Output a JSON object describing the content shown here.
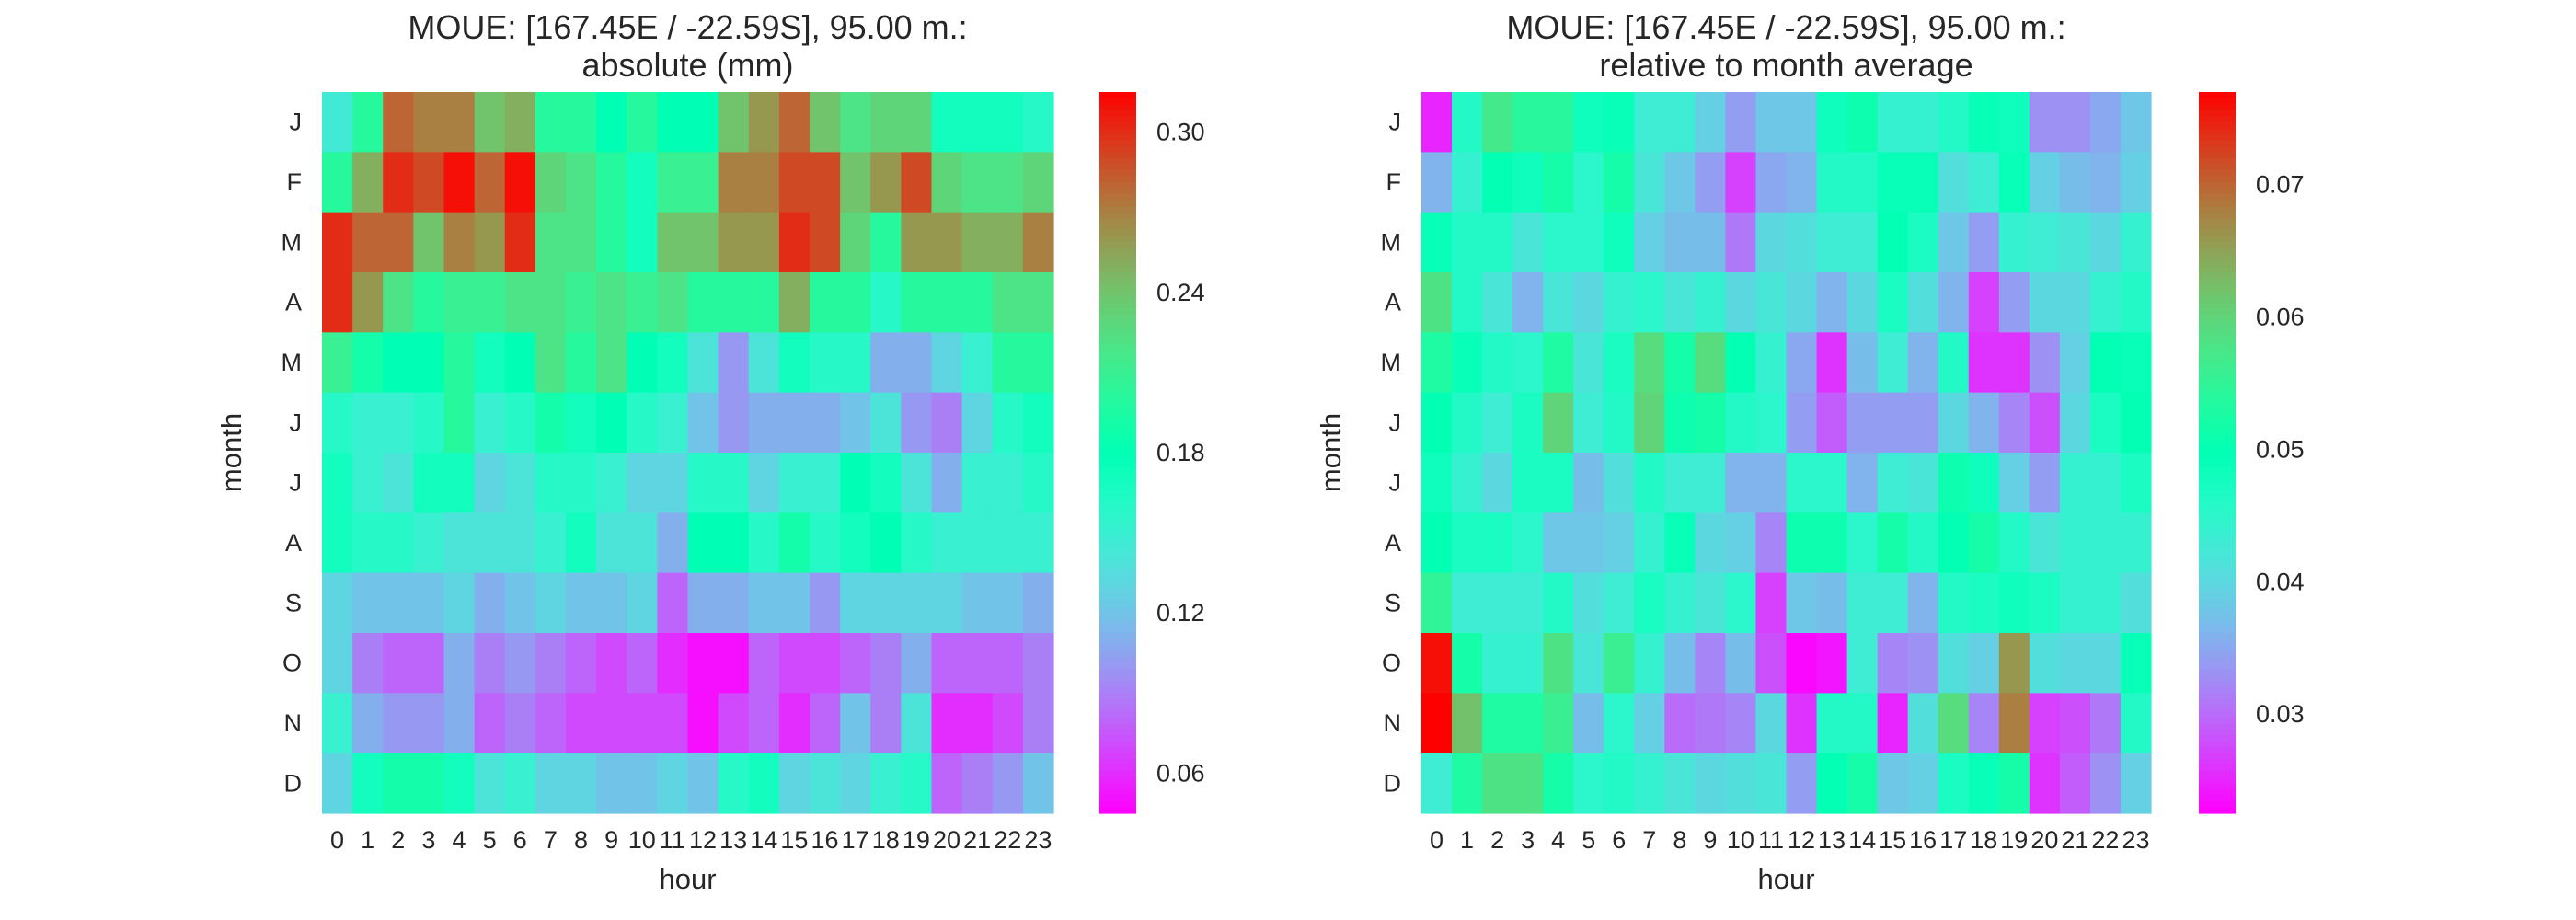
{
  "figure": {
    "colors": {
      "background": "#ffffff",
      "text": "#262626",
      "colormap": "rainbow"
    }
  },
  "chart_data": [
    {
      "type": "heatmap",
      "title": "MOUE: [167.45E / -22.59S], 95.00 m.:\nabsolute (mm)",
      "xlabel": "hour",
      "ylabel": "month",
      "x_categories": [
        "0",
        "1",
        "2",
        "3",
        "4",
        "5",
        "6",
        "7",
        "8",
        "9",
        "10",
        "11",
        "12",
        "13",
        "14",
        "15",
        "16",
        "17",
        "18",
        "19",
        "20",
        "21",
        "22",
        "23"
      ],
      "y_categories": [
        "J",
        "F",
        "M",
        "A",
        "M",
        "J",
        "J",
        "A",
        "S",
        "O",
        "N",
        "D"
      ],
      "colorbar": {
        "vmin": 0.045,
        "vmax": 0.315,
        "ticks": [
          0.06,
          0.12,
          0.18,
          0.24,
          0.3
        ]
      },
      "values": [
        [
          0.145,
          0.2,
          0.28,
          0.27,
          0.27,
          0.24,
          0.25,
          0.2,
          0.2,
          0.18,
          0.2,
          0.18,
          0.18,
          0.24,
          0.26,
          0.28,
          0.24,
          0.22,
          0.23,
          0.23,
          0.17,
          0.17,
          0.17,
          0.16
        ],
        [
          0.2,
          0.25,
          0.3,
          0.29,
          0.31,
          0.28,
          0.31,
          0.23,
          0.22,
          0.2,
          0.17,
          0.21,
          0.21,
          0.27,
          0.27,
          0.29,
          0.29,
          0.24,
          0.26,
          0.29,
          0.23,
          0.22,
          0.22,
          0.23
        ],
        [
          0.3,
          0.28,
          0.28,
          0.24,
          0.27,
          0.26,
          0.3,
          0.22,
          0.22,
          0.2,
          0.17,
          0.24,
          0.24,
          0.26,
          0.26,
          0.3,
          0.29,
          0.23,
          0.2,
          0.26,
          0.26,
          0.25,
          0.25,
          0.27
        ],
        [
          0.3,
          0.26,
          0.22,
          0.2,
          0.21,
          0.21,
          0.22,
          0.22,
          0.21,
          0.22,
          0.21,
          0.22,
          0.2,
          0.2,
          0.2,
          0.25,
          0.2,
          0.2,
          0.16,
          0.2,
          0.2,
          0.2,
          0.22,
          0.22
        ],
        [
          0.21,
          0.19,
          0.18,
          0.18,
          0.2,
          0.17,
          0.18,
          0.22,
          0.2,
          0.22,
          0.18,
          0.17,
          0.14,
          0.1,
          0.14,
          0.17,
          0.16,
          0.16,
          0.11,
          0.11,
          0.13,
          0.15,
          0.2,
          0.2
        ],
        [
          0.16,
          0.15,
          0.15,
          0.16,
          0.2,
          0.15,
          0.16,
          0.19,
          0.17,
          0.18,
          0.16,
          0.15,
          0.12,
          0.1,
          0.11,
          0.11,
          0.11,
          0.12,
          0.14,
          0.1,
          0.09,
          0.13,
          0.16,
          0.17
        ],
        [
          0.17,
          0.15,
          0.14,
          0.17,
          0.17,
          0.13,
          0.14,
          0.16,
          0.16,
          0.15,
          0.13,
          0.13,
          0.16,
          0.16,
          0.13,
          0.15,
          0.15,
          0.18,
          0.17,
          0.14,
          0.11,
          0.15,
          0.15,
          0.16
        ],
        [
          0.17,
          0.16,
          0.16,
          0.15,
          0.14,
          0.14,
          0.14,
          0.15,
          0.17,
          0.14,
          0.14,
          0.11,
          0.18,
          0.18,
          0.16,
          0.19,
          0.16,
          0.17,
          0.18,
          0.16,
          0.15,
          0.15,
          0.15,
          0.15
        ],
        [
          0.13,
          0.12,
          0.12,
          0.12,
          0.13,
          0.11,
          0.12,
          0.13,
          0.12,
          0.12,
          0.13,
          0.08,
          0.11,
          0.11,
          0.12,
          0.12,
          0.1,
          0.13,
          0.13,
          0.13,
          0.13,
          0.12,
          0.12,
          0.11
        ],
        [
          0.13,
          0.09,
          0.08,
          0.08,
          0.11,
          0.09,
          0.1,
          0.09,
          0.08,
          0.07,
          0.08,
          0.06,
          0.05,
          0.05,
          0.08,
          0.07,
          0.07,
          0.08,
          0.09,
          0.11,
          0.08,
          0.08,
          0.08,
          0.09
        ],
        [
          0.15,
          0.11,
          0.1,
          0.1,
          0.11,
          0.08,
          0.09,
          0.08,
          0.07,
          0.07,
          0.07,
          0.07,
          0.05,
          0.07,
          0.08,
          0.06,
          0.08,
          0.12,
          0.09,
          0.14,
          0.06,
          0.06,
          0.07,
          0.09
        ],
        [
          0.13,
          0.17,
          0.19,
          0.19,
          0.17,
          0.14,
          0.15,
          0.13,
          0.13,
          0.12,
          0.12,
          0.13,
          0.12,
          0.16,
          0.17,
          0.13,
          0.14,
          0.13,
          0.15,
          0.16,
          0.08,
          0.09,
          0.1,
          0.12
        ]
      ]
    },
    {
      "type": "heatmap",
      "title": "MOUE: [167.45E / -22.59S], 95.00 m.:\nrelative to month average",
      "xlabel": "hour",
      "ylabel": "month",
      "x_categories": [
        "0",
        "1",
        "2",
        "3",
        "4",
        "5",
        "6",
        "7",
        "8",
        "9",
        "10",
        "11",
        "12",
        "13",
        "14",
        "15",
        "16",
        "17",
        "18",
        "19",
        "20",
        "21",
        "22",
        "23"
      ],
      "y_categories": [
        "J",
        "F",
        "M",
        "A",
        "M",
        "J",
        "J",
        "A",
        "S",
        "O",
        "N",
        "D"
      ],
      "colorbar": {
        "vmin": 0.0225,
        "vmax": 0.077,
        "ticks": [
          0.03,
          0.04,
          0.05,
          0.06,
          0.07
        ]
      },
      "values": [
        [
          0.025,
          0.046,
          0.057,
          0.054,
          0.054,
          0.048,
          0.049,
          0.043,
          0.043,
          0.039,
          0.034,
          0.038,
          0.038,
          0.048,
          0.051,
          0.044,
          0.044,
          0.046,
          0.049,
          0.048,
          0.033,
          0.033,
          0.035,
          0.038
        ],
        [
          0.036,
          0.044,
          0.05,
          0.048,
          0.052,
          0.045,
          0.052,
          0.042,
          0.038,
          0.034,
          0.027,
          0.035,
          0.036,
          0.046,
          0.046,
          0.049,
          0.049,
          0.041,
          0.043,
          0.049,
          0.039,
          0.037,
          0.036,
          0.039
        ],
        [
          0.049,
          0.046,
          0.046,
          0.042,
          0.045,
          0.045,
          0.048,
          0.039,
          0.037,
          0.037,
          0.031,
          0.04,
          0.041,
          0.043,
          0.043,
          0.05,
          0.047,
          0.038,
          0.034,
          0.044,
          0.043,
          0.042,
          0.04,
          0.044
        ],
        [
          0.058,
          0.046,
          0.042,
          0.036,
          0.042,
          0.04,
          0.044,
          0.045,
          0.042,
          0.044,
          0.04,
          0.042,
          0.04,
          0.036,
          0.04,
          0.047,
          0.041,
          0.036,
          0.027,
          0.034,
          0.04,
          0.04,
          0.044,
          0.046
        ],
        [
          0.053,
          0.049,
          0.046,
          0.045,
          0.053,
          0.042,
          0.047,
          0.059,
          0.052,
          0.059,
          0.05,
          0.044,
          0.035,
          0.026,
          0.037,
          0.043,
          0.036,
          0.046,
          0.026,
          0.026,
          0.033,
          0.039,
          0.05,
          0.049
        ],
        [
          0.05,
          0.046,
          0.043,
          0.047,
          0.06,
          0.043,
          0.046,
          0.06,
          0.051,
          0.052,
          0.046,
          0.045,
          0.034,
          0.029,
          0.034,
          0.034,
          0.034,
          0.04,
          0.036,
          0.032,
          0.028,
          0.04,
          0.047,
          0.05
        ],
        [
          0.048,
          0.044,
          0.04,
          0.047,
          0.047,
          0.037,
          0.041,
          0.046,
          0.043,
          0.043,
          0.036,
          0.036,
          0.045,
          0.045,
          0.036,
          0.043,
          0.042,
          0.051,
          0.048,
          0.039,
          0.034,
          0.044,
          0.044,
          0.047
        ],
        [
          0.05,
          0.047,
          0.047,
          0.045,
          0.038,
          0.038,
          0.039,
          0.044,
          0.049,
          0.04,
          0.039,
          0.032,
          0.051,
          0.051,
          0.045,
          0.052,
          0.046,
          0.05,
          0.052,
          0.046,
          0.042,
          0.044,
          0.044,
          0.044
        ],
        [
          0.055,
          0.043,
          0.043,
          0.043,
          0.046,
          0.041,
          0.043,
          0.047,
          0.044,
          0.042,
          0.045,
          0.027,
          0.038,
          0.037,
          0.043,
          0.043,
          0.036,
          0.046,
          0.047,
          0.048,
          0.047,
          0.044,
          0.044,
          0.041
        ],
        [
          0.076,
          0.052,
          0.044,
          0.044,
          0.058,
          0.042,
          0.056,
          0.044,
          0.037,
          0.032,
          0.037,
          0.028,
          0.023,
          0.024,
          0.043,
          0.032,
          0.033,
          0.041,
          0.039,
          0.066,
          0.041,
          0.04,
          0.04,
          0.049
        ],
        [
          0.077,
          0.062,
          0.053,
          0.053,
          0.056,
          0.037,
          0.045,
          0.039,
          0.03,
          0.031,
          0.032,
          0.04,
          0.026,
          0.046,
          0.046,
          0.025,
          0.041,
          0.059,
          0.032,
          0.068,
          0.027,
          0.028,
          0.031,
          0.046
        ],
        [
          0.043,
          0.053,
          0.058,
          0.058,
          0.052,
          0.045,
          0.046,
          0.044,
          0.042,
          0.04,
          0.041,
          0.042,
          0.034,
          0.05,
          0.052,
          0.038,
          0.039,
          0.047,
          0.049,
          0.052,
          0.026,
          0.029,
          0.033,
          0.039
        ]
      ]
    }
  ]
}
